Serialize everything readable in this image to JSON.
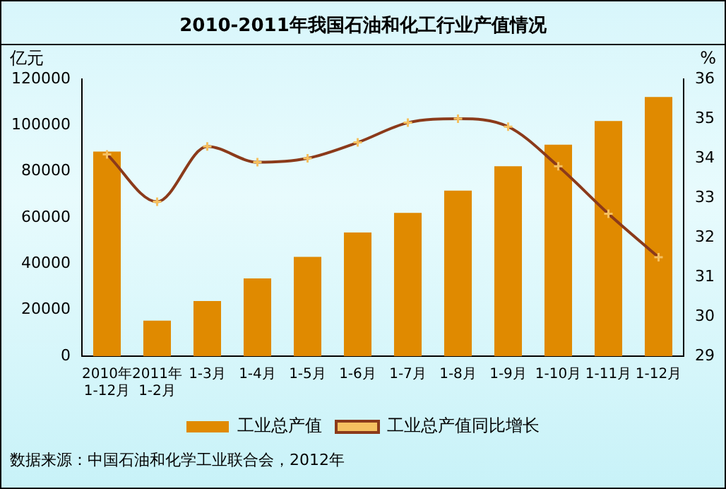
{
  "chart_data": {
    "type": "bar",
    "title": "2010-2011年我国石油和化工行业产值情况",
    "ylabel": "亿元",
    "y2label": "%",
    "categories": [
      "2010年1-12月",
      "2011年1-2月",
      "1-3月",
      "1-4月",
      "1-5月",
      "1-6月",
      "1-7月",
      "1-8月",
      "1-9月",
      "1-10月",
      "1-11月",
      "1-12月"
    ],
    "series": [
      {
        "name": "工业总产值",
        "color": "#e08a00",
        "values": [
          88600,
          15400,
          23900,
          33700,
          43000,
          53600,
          62100,
          71700,
          82300,
          91600,
          101900,
          112300
        ]
      },
      {
        "name": "工业总产值同比增长",
        "type": "line",
        "axis": "y2",
        "color": "#8b3a1a",
        "marker": "cross",
        "values": [
          34.1,
          32.9,
          34.3,
          33.9,
          34.0,
          34.4,
          34.9,
          35.0,
          34.8,
          33.8,
          32.6,
          31.5
        ]
      }
    ],
    "ylim": [
      0,
      120000
    ],
    "yticks": [
      0,
      20000,
      40000,
      60000,
      80000,
      100000,
      120000
    ],
    "y2lim": [
      29,
      36
    ],
    "y2ticks": [
      29,
      30,
      31,
      32,
      33,
      34,
      35,
      36
    ],
    "grid": false,
    "legend": "bottom",
    "annotations": [
      "数据来源：中国石油和化学工业联合会，2012年"
    ]
  }
}
